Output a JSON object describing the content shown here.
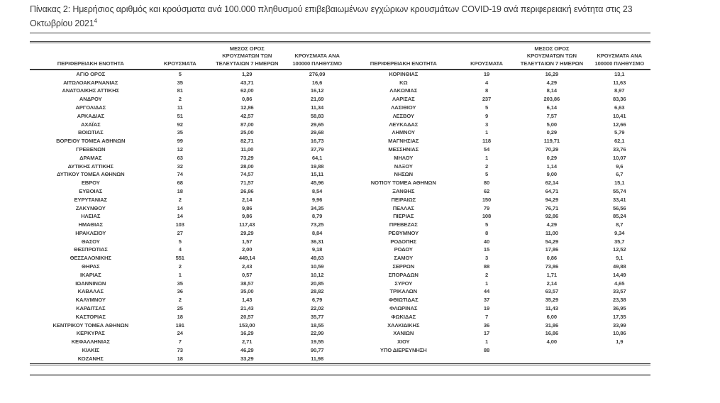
{
  "document": {
    "caption": "Πίνακας 2: Ημερήσιος αριθμός και κρούσματα ανά 100.000 πληθυσμού επιβεβαιωμένων εγχώριων κρουσμάτων COVID-19 ανά περιφερειακή ενότητα στις 23 Οκτωβρίου 2021",
    "footnote_ref": "4"
  },
  "table": {
    "headers": {
      "region": "ΠΕΡΙΦΕΡΕΙΑΚΗ ΕΝΟΤΗΤΑ",
      "cases": "ΚΡΟΥΣΜΑΤΑ",
      "avg7": "ΜΕΣΟΣ ΟΡΟΣ ΚΡΟΥΣΜΑΤΩΝ ΤΩΝ ΤΕΛΕΥΤΑΙΩΝ 7 ΗΜΕΡΩΝ",
      "per100k": "ΚΡΟΥΣΜΑΤΑ ΑΝΑ 100000 ΠΛΗΘΥΣΜΟ"
    },
    "left_rows": [
      [
        "ΑΓΙΟ ΟΡΟΣ",
        "5",
        "1,29",
        "276,09"
      ],
      [
        "ΑΙΤΩΛΟΑΚΑΡΝΑΝΙΑΣ",
        "35",
        "43,71",
        "16,6"
      ],
      [
        "ΑΝΑΤΟΛΙΚΗΣ ΑΤΤΙΚΗΣ",
        "81",
        "62,00",
        "16,12"
      ],
      [
        "ΑΝΔΡΟΥ",
        "2",
        "0,86",
        "21,69"
      ],
      [
        "ΑΡΓΟΛΙΔΑΣ",
        "11",
        "12,86",
        "11,34"
      ],
      [
        "ΑΡΚΑΔΙΑΣ",
        "51",
        "42,57",
        "58,83"
      ],
      [
        "ΑΧΑΪΑΣ",
        "92",
        "87,00",
        "29,65"
      ],
      [
        "ΒΟΙΩΤΙΑΣ",
        "35",
        "25,00",
        "29,68"
      ],
      [
        "ΒΟΡΕΙΟΥ ΤΟΜΕΑ ΑΘΗΝΩΝ",
        "99",
        "82,71",
        "16,73"
      ],
      [
        "ΓΡΕΒΕΝΩΝ",
        "12",
        "11,00",
        "37,79"
      ],
      [
        "ΔΡΑΜΑΣ",
        "63",
        "73,29",
        "64,1"
      ],
      [
        "ΔΥΤΙΚΗΣ ΑΤΤΙΚΗΣ",
        "32",
        "28,00",
        "19,88"
      ],
      [
        "ΔΥΤΙΚΟΥ ΤΟΜΕΑ ΑΘΗΝΩΝ",
        "74",
        "74,57",
        "15,11"
      ],
      [
        "ΕΒΡΟΥ",
        "68",
        "71,57",
        "45,96"
      ],
      [
        "ΕΥΒΟΙΑΣ",
        "18",
        "26,86",
        "8,54"
      ],
      [
        "ΕΥΡΥΤΑΝΙΑΣ",
        "2",
        "2,14",
        "9,96"
      ],
      [
        "ΖΑΚΥΝΘΟΥ",
        "14",
        "9,86",
        "34,35"
      ],
      [
        "ΗΛΕΙΑΣ",
        "14",
        "9,86",
        "8,79"
      ],
      [
        "ΗΜΑΘΙΑΣ",
        "103",
        "117,43",
        "73,25"
      ],
      [
        "ΗΡΑΚΛΕΙΟΥ",
        "27",
        "29,29",
        "8,84"
      ],
      [
        "ΘΑΣΟΥ",
        "5",
        "1,57",
        "36,31"
      ],
      [
        "ΘΕΣΠΡΩΤΙΑΣ",
        "4",
        "2,00",
        "9,18"
      ],
      [
        "ΘΕΣΣΑΛΟΝΙΚΗΣ",
        "551",
        "449,14",
        "49,63"
      ],
      [
        "ΘΗΡΑΣ",
        "2",
        "2,43",
        "10,59"
      ],
      [
        "ΙΚΑΡΙΑΣ",
        "1",
        "0,57",
        "10,12"
      ],
      [
        "ΙΩΑΝΝΙΝΩΝ",
        "35",
        "38,57",
        "20,85"
      ],
      [
        "ΚΑΒΑΛΑΣ",
        "36",
        "35,00",
        "28,82"
      ],
      [
        "ΚΑΛΥΜΝΟΥ",
        "2",
        "1,43",
        "6,79"
      ],
      [
        "ΚΑΡΔΙΤΣΑΣ",
        "25",
        "21,43",
        "22,02"
      ],
      [
        "ΚΑΣΤΟΡΙΑΣ",
        "18",
        "20,57",
        "35,77"
      ],
      [
        "ΚΕΝΤΡΙΚΟΥ ΤΟΜΕΑ ΑΘΗΝΩΝ",
        "191",
        "153,00",
        "18,55"
      ],
      [
        "ΚΕΡΚΥΡΑΣ",
        "24",
        "16,29",
        "22,99"
      ],
      [
        "ΚΕΦΑΛΛΗΝΙΑΣ",
        "7",
        "2,71",
        "19,55"
      ],
      [
        "ΚΙΛΚΙΣ",
        "73",
        "46,29",
        "90,77"
      ],
      [
        "ΚΟΖΑΝΗΣ",
        "18",
        "33,29",
        "11,98"
      ]
    ],
    "right_rows": [
      [
        "ΚΟΡΙΝΘΙΑΣ",
        "19",
        "16,29",
        "13,1"
      ],
      [
        "ΚΩ",
        "4",
        "4,29",
        "11,63"
      ],
      [
        "ΛΑΚΩΝΙΑΣ",
        "8",
        "8,14",
        "8,97"
      ],
      [
        "ΛΑΡΙΣΑΣ",
        "237",
        "203,86",
        "83,36"
      ],
      [
        "ΛΑΣΙΘΙΟΥ",
        "5",
        "6,14",
        "6,63"
      ],
      [
        "ΛΕΣΒΟΥ",
        "9",
        "7,57",
        "10,41"
      ],
      [
        "ΛΕΥΚΑΔΑΣ",
        "3",
        "5,00",
        "12,66"
      ],
      [
        "ΛΗΜΝΟΥ",
        "1",
        "0,29",
        "5,79"
      ],
      [
        "ΜΑΓΝΗΣΙΑΣ",
        "118",
        "119,71",
        "62,1"
      ],
      [
        "ΜΕΣΣΗΝΙΑΣ",
        "54",
        "70,29",
        "33,76"
      ],
      [
        "ΜΗΛΟΥ",
        "1",
        "0,29",
        "10,07"
      ],
      [
        "ΝΑΞΟΥ",
        "2",
        "1,14",
        "9,6"
      ],
      [
        "ΝΗΣΩΝ",
        "5",
        "9,00",
        "6,7"
      ],
      [
        "ΝΟΤΙΟΥ ΤΟΜΕΑ ΑΘΗΝΩΝ",
        "80",
        "62,14",
        "15,1"
      ],
      [
        "ΞΑΝΘΗΣ",
        "62",
        "64,71",
        "55,74"
      ],
      [
        "ΠΕΙΡΑΙΩΣ",
        "150",
        "94,29",
        "33,41"
      ],
      [
        "ΠΕΛΛΑΣ",
        "79",
        "76,71",
        "56,56"
      ],
      [
        "ΠΙΕΡΙΑΣ",
        "108",
        "92,86",
        "85,24"
      ],
      [
        "ΠΡΕΒΕΖΑΣ",
        "5",
        "4,29",
        "8,7"
      ],
      [
        "ΡΕΘΥΜΝΟΥ",
        "8",
        "11,00",
        "9,34"
      ],
      [
        "ΡΟΔΟΠΗΣ",
        "40",
        "54,29",
        "35,7"
      ],
      [
        "ΡΟΔΟΥ",
        "15",
        "17,86",
        "12,52"
      ],
      [
        "ΣΑΜΟΥ",
        "3",
        "0,86",
        "9,1"
      ],
      [
        "ΣΕΡΡΩΝ",
        "88",
        "73,86",
        "49,88"
      ],
      [
        "ΣΠΟΡΑΔΩΝ",
        "2",
        "1,71",
        "14,49"
      ],
      [
        "ΣΥΡΟΥ",
        "1",
        "2,14",
        "4,65"
      ],
      [
        "ΤΡΙΚΑΛΩΝ",
        "44",
        "63,57",
        "33,57"
      ],
      [
        "ΦΘΙΩΤΙΔΑΣ",
        "37",
        "35,29",
        "23,38"
      ],
      [
        "ΦΛΩΡΙΝΑΣ",
        "19",
        "11,43",
        "36,95"
      ],
      [
        "ΦΩΚΙΔΑΣ",
        "7",
        "6,00",
        "17,35"
      ],
      [
        "ΧΑΛΚΙΔΙΚΗΣ",
        "36",
        "31,86",
        "33,99"
      ],
      [
        "ΧΑΝΙΩΝ",
        "17",
        "16,86",
        "10,86"
      ],
      [
        "ΧΙΟΥ",
        "1",
        "4,00",
        "1,9"
      ],
      [
        "ΥΠΟ ΔΙΕΡΕΥΝΗΣΗ",
        "88",
        "",
        ""
      ]
    ],
    "colors": {
      "text": "#3d3d3d",
      "rule_dark": "#2e2e2e",
      "border_dark": "#4c4c4c",
      "border_gray": "#969696",
      "background": "#ffffff"
    }
  }
}
